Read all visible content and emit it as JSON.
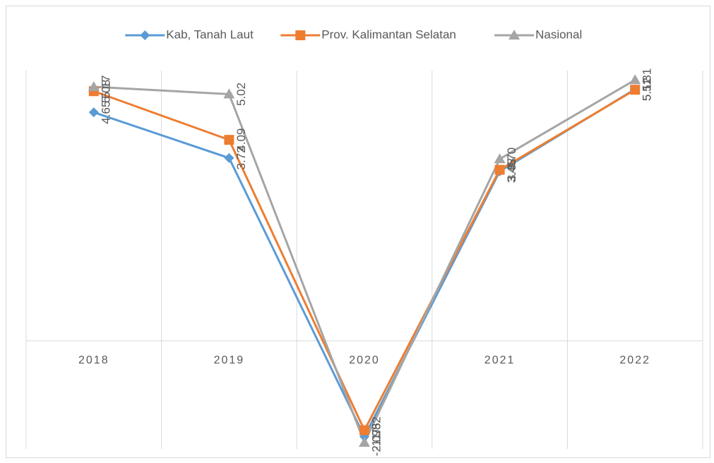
{
  "chart_data": {
    "type": "line",
    "categories": [
      "2018",
      "2019",
      "2020",
      "2021",
      "2022"
    ],
    "series": [
      {
        "name": "Kab, Tanah Laut",
        "color": "#5b9bd5",
        "marker": "diamond",
        "values": [
          4.65,
          3.72,
          -1.95,
          3.45,
          5.12
        ],
        "value_labels": [
          "4.65",
          "3.72",
          "-1.95",
          "3.45",
          "5.12"
        ]
      },
      {
        "name": "Prov. Kalimantan Selatan",
        "color": "#ed7d31",
        "marker": "square",
        "values": [
          5.08,
          4.09,
          -1.82,
          3.48,
          5.11
        ],
        "value_labels": [
          "5.08",
          "4.09",
          "-1.82",
          "3.48",
          "5.11"
        ]
      },
      {
        "name": "Nasional",
        "color": "#a5a5a5",
        "marker": "triangle",
        "values": [
          5.17,
          5.02,
          -2.07,
          3.7,
          5.31
        ],
        "value_labels": [
          "5.17",
          "5.02",
          "-2.07",
          "3.70",
          "5.31"
        ]
      }
    ],
    "ylim": [
      -2.2,
      5.5
    ],
    "legend": "top"
  }
}
